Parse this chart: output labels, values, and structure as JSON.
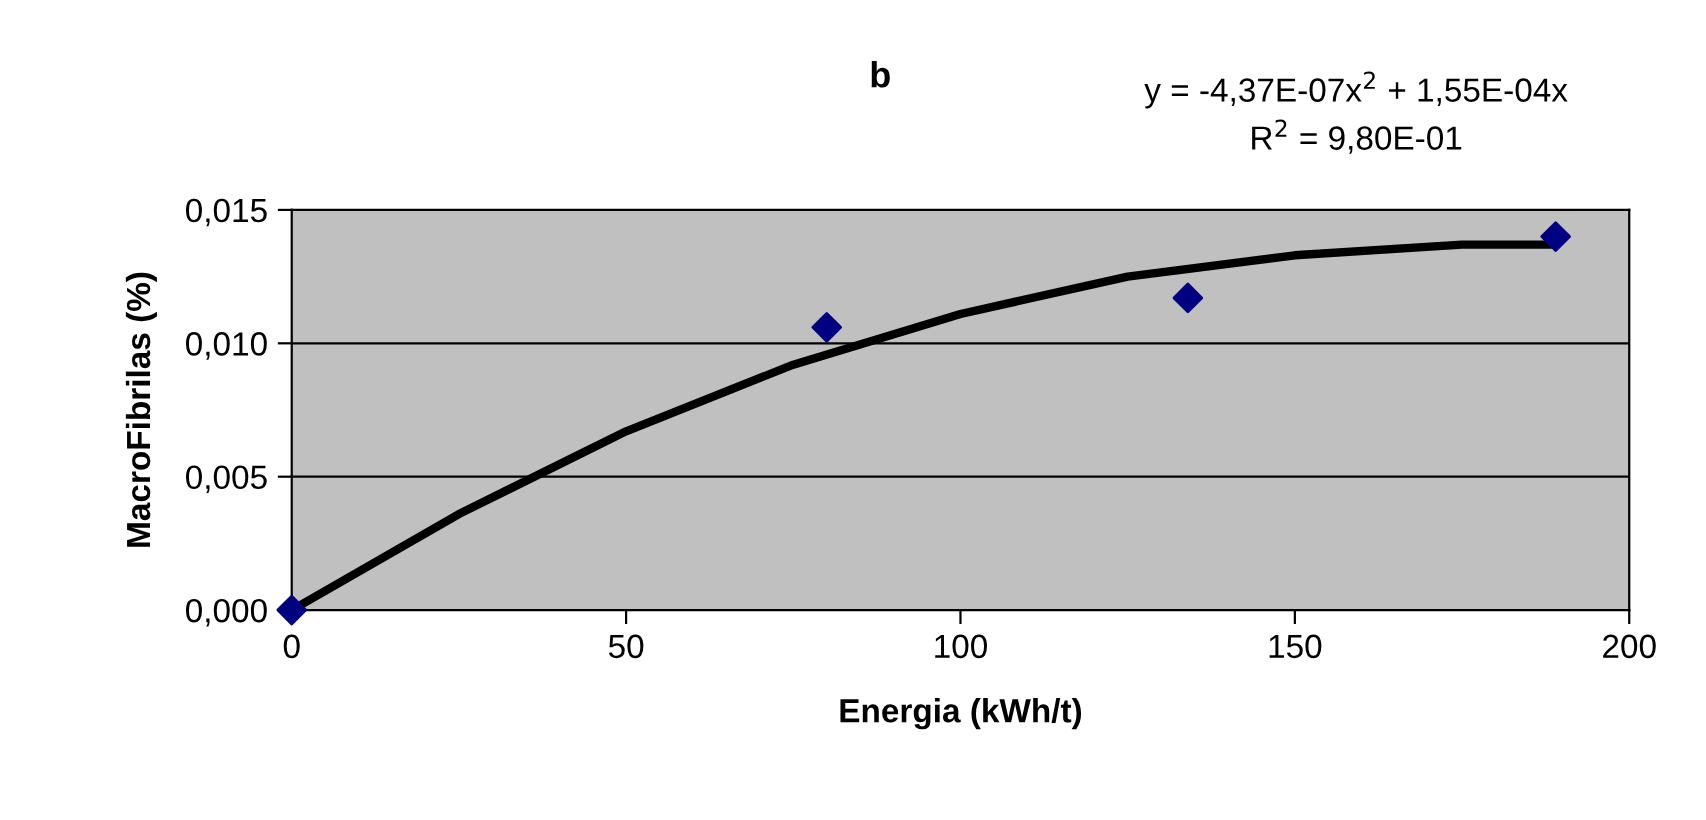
{
  "chart_data": {
    "type": "scatter",
    "title": "b",
    "xlabel": "Energia (kWh/t)",
    "ylabel": "MacroFibrilas (%)",
    "annotations": [
      "y = -4,37E-07x$^{2}$ + 1,55E-04x",
      "R$^{2}$ = 9,80E-01"
    ],
    "series": [
      {
        "color": "#000080",
        "marker": "diamond",
        "x": [
          0,
          80,
          134,
          189
        ],
        "values": [
          0.0,
          0.0106,
          0.0117,
          0.014
        ]
      },
      {
        "type": "line",
        "color": "#000000",
        "marker": "none",
        "line_style": "solid",
        "x": [
          0,
          25,
          50,
          75,
          100,
          125,
          150,
          175,
          189
        ],
        "values": [
          0.0,
          0.0036,
          0.0067,
          0.0092,
          0.0111,
          0.0125,
          0.0133,
          0.0137,
          0.0137
        ]
      }
    ],
    "xlim": [
      0,
      200
    ],
    "xticks": [
      0,
      50,
      100,
      150,
      200
    ],
    "ylim": [
      0,
      0.015
    ],
    "yticks": [
      {
        "value": 0,
        "label": "0,000"
      },
      {
        "value": 0.005,
        "label": "0,005"
      },
      {
        "value": 0.01,
        "label": "0,010"
      },
      {
        "value": 0.015,
        "label": "0,015"
      }
    ],
    "grid": "y",
    "legend": false
  }
}
